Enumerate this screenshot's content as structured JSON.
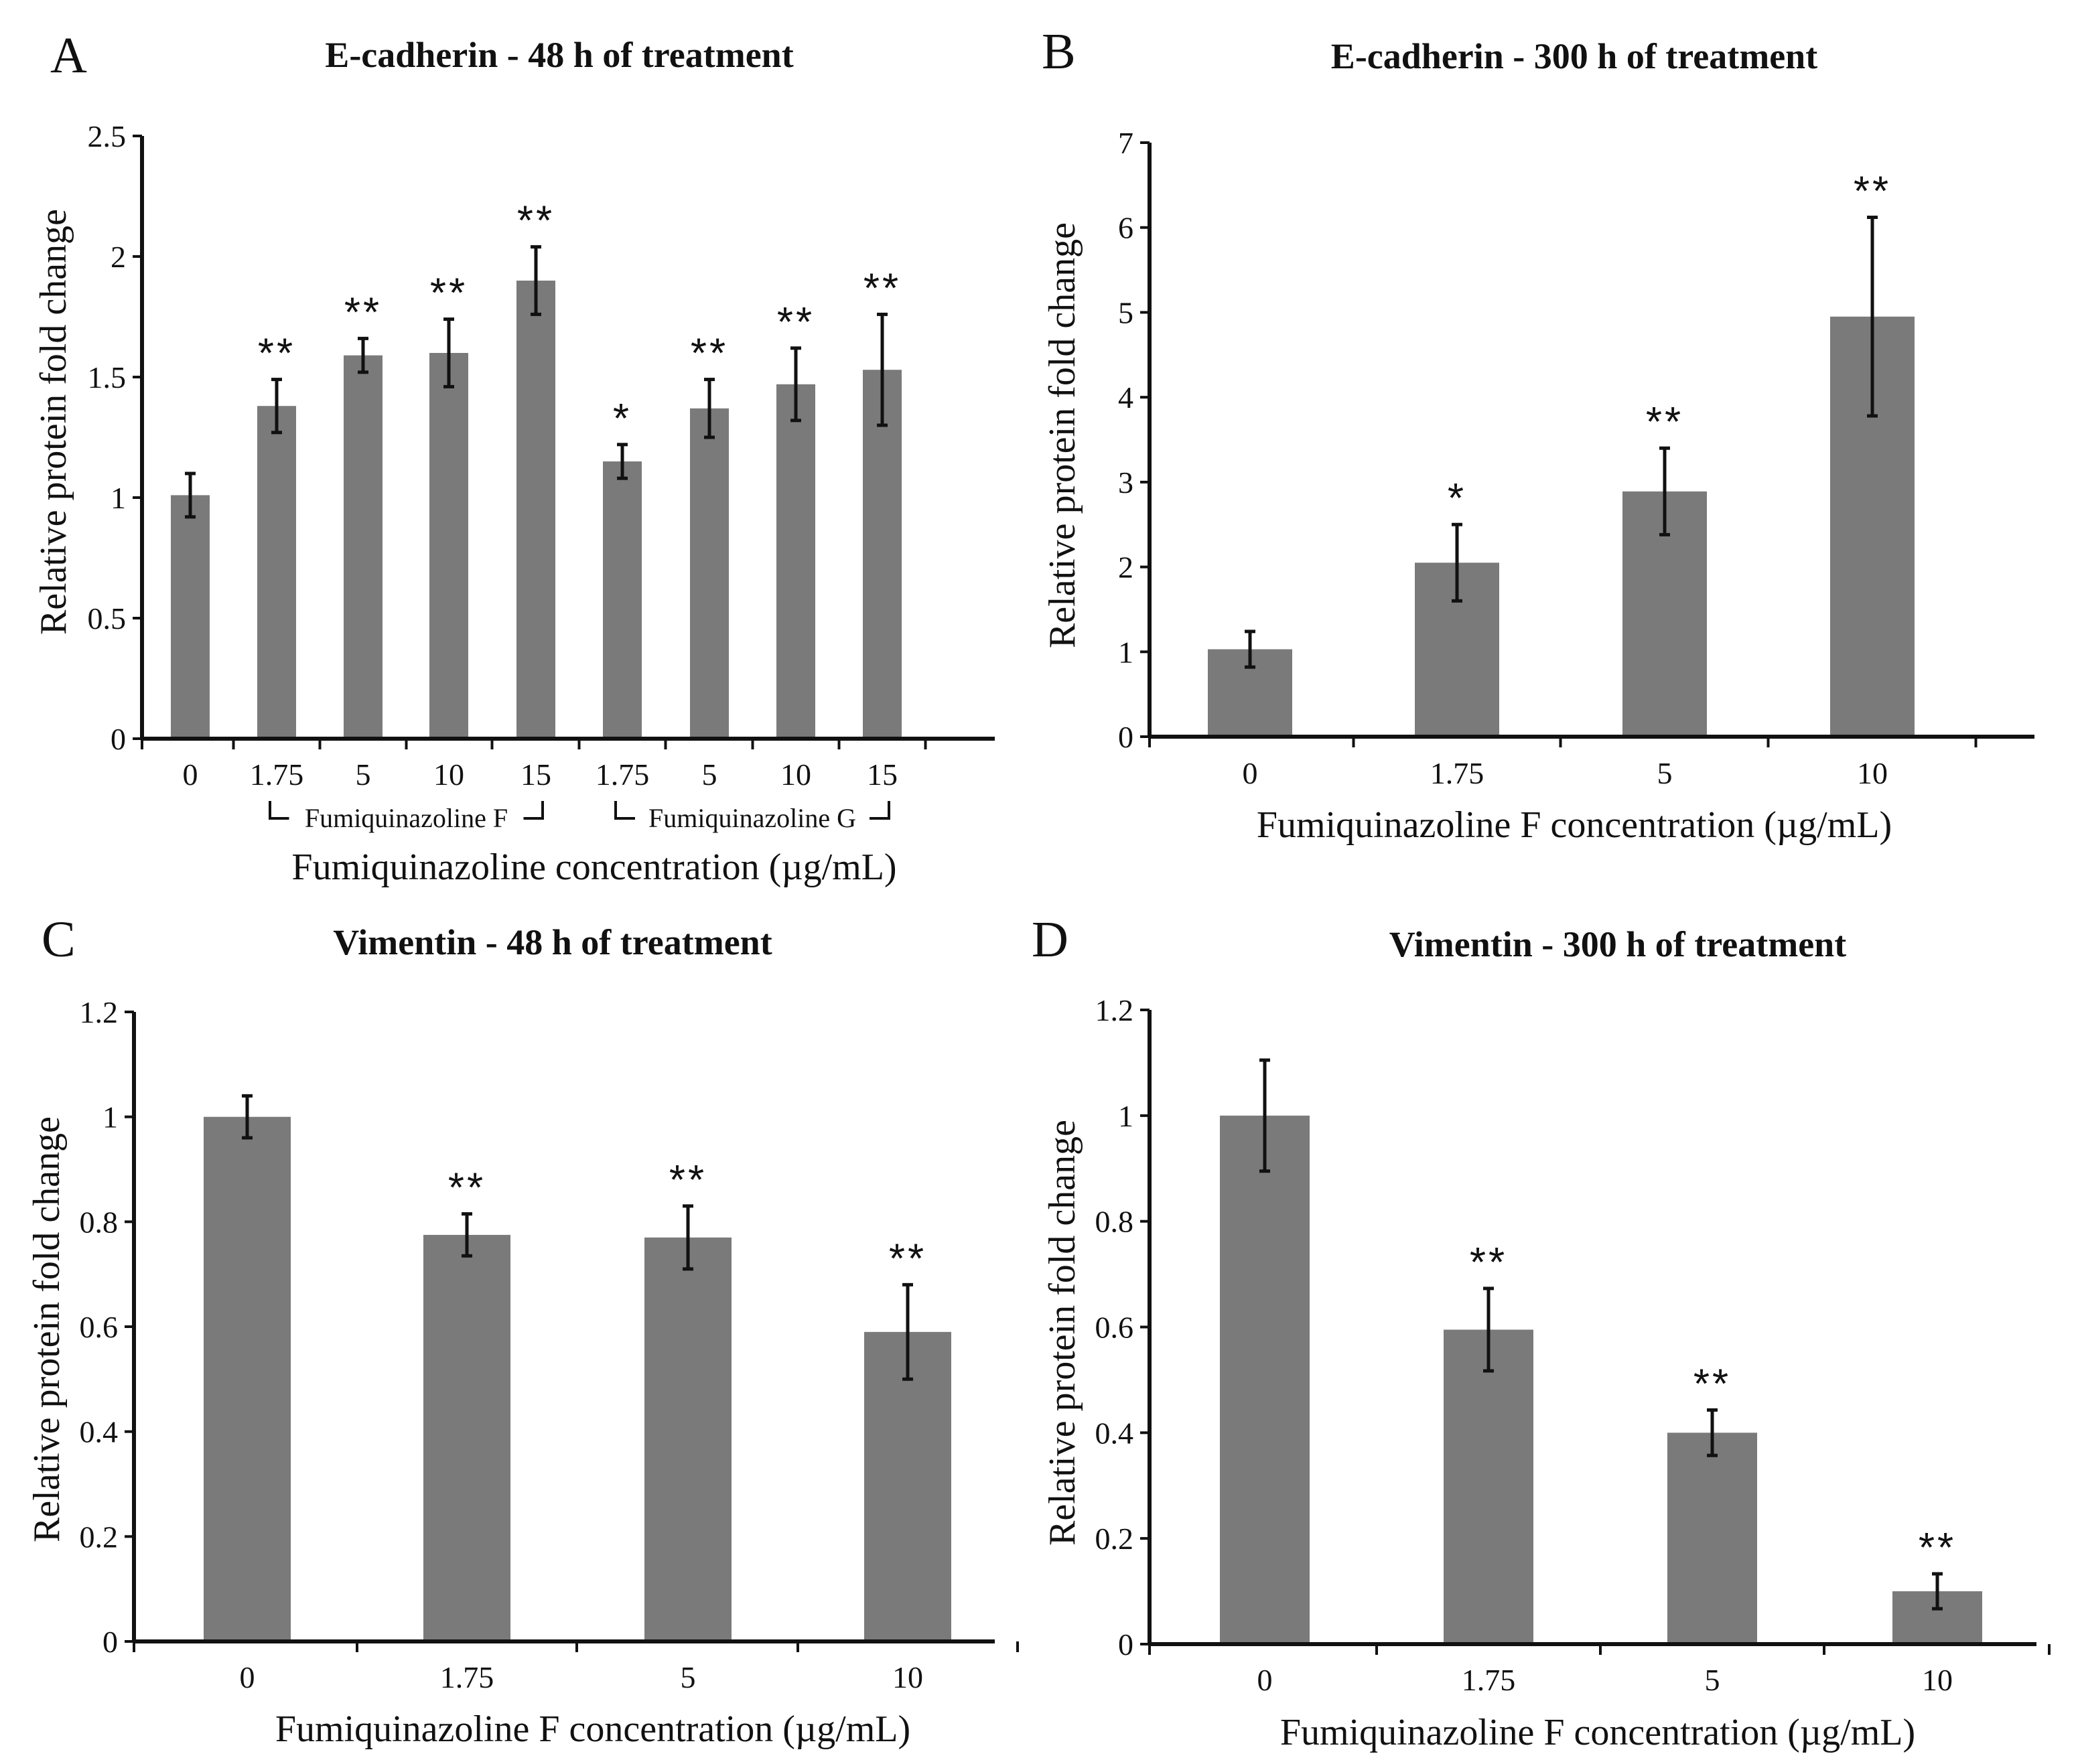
{
  "chart_data": [
    {
      "type": "bar",
      "panel": "A",
      "title": "E-cadherin - 48 h of treatment",
      "xlabel": "Fumiquinazoline concentration (µg/mL)",
      "ylabel": "Relative protein fold change",
      "ylim": [
        0,
        2.5
      ],
      "yticks": [
        "0",
        "0.5",
        "1",
        "1.5",
        "2",
        "2.5"
      ],
      "categories": [
        "0",
        "1.75",
        "5",
        "10",
        "15",
        "1.75",
        "5",
        "10",
        "15"
      ],
      "values": [
        1.01,
        1.38,
        1.59,
        1.6,
        1.9,
        1.15,
        1.37,
        1.47,
        1.53
      ],
      "errors": [
        0.09,
        0.11,
        0.07,
        0.14,
        0.14,
        0.07,
        0.12,
        0.15,
        0.23
      ],
      "significance": [
        "",
        "**",
        "**",
        "**",
        "**",
        "*",
        "**",
        "**",
        "**"
      ],
      "groups": [
        {
          "label": "Fumiquinazoline F",
          "from": 1,
          "to": 4
        },
        {
          "label": "Fumiquinazoline G",
          "from": 5,
          "to": 8
        }
      ]
    },
    {
      "type": "bar",
      "panel": "B",
      "title": "E-cadherin - 300 h of treatment",
      "xlabel": "Fumiquinazoline F concentration (µg/mL)",
      "ylabel": "Relative protein fold change",
      "ylim": [
        0,
        7
      ],
      "yticks": [
        "0",
        "1",
        "2",
        "3",
        "4",
        "5",
        "6",
        "7"
      ],
      "categories": [
        "0",
        "1.75",
        "5",
        "10"
      ],
      "values": [
        1.03,
        2.05,
        2.89,
        4.95
      ],
      "errors": [
        0.21,
        0.45,
        0.51,
        1.17
      ],
      "significance": [
        "",
        "*",
        "**",
        "**"
      ]
    },
    {
      "type": "bar",
      "panel": "C",
      "title": "Vimentin - 48 h of treatment",
      "xlabel": "Fumiquinazoline F concentration (µg/mL)",
      "ylabel": "Relative protein fold change",
      "ylim": [
        0,
        1.2
      ],
      "yticks": [
        "0",
        "0.2",
        "0.4",
        "0.6",
        "0.8",
        "1",
        "1.2"
      ],
      "categories": [
        "0",
        "1.75",
        "5",
        "10"
      ],
      "values": [
        1.0,
        0.775,
        0.77,
        0.59
      ],
      "errors": [
        0.04,
        0.04,
        0.06,
        0.09
      ],
      "significance": [
        "",
        "**",
        "**",
        "**"
      ]
    },
    {
      "type": "bar",
      "panel": "D",
      "title": "Vimentin - 300 h of treatment",
      "xlabel": "Fumiquinazoline F concentration (µg/mL)",
      "ylabel": "Relative protein fold change",
      "ylim": [
        0,
        1.2
      ],
      "yticks": [
        "0",
        "0.2",
        "0.4",
        "0.6",
        "0.8",
        "1",
        "1.2"
      ],
      "categories": [
        "0",
        "1.75",
        "5",
        "10"
      ],
      "values": [
        1.0,
        0.595,
        0.4,
        0.1
      ],
      "errors": [
        0.105,
        0.078,
        0.043,
        0.033
      ],
      "significance": [
        "",
        "**",
        "**",
        "**"
      ]
    }
  ]
}
